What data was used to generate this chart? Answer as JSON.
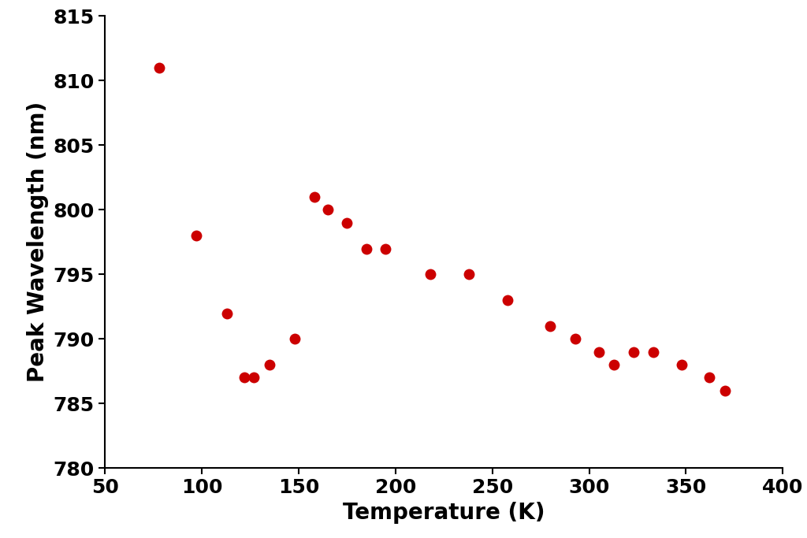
{
  "x": [
    78,
    97,
    113,
    122,
    127,
    135,
    148,
    158,
    165,
    175,
    185,
    195,
    218,
    238,
    258,
    280,
    293,
    305,
    313,
    323,
    333,
    348,
    362,
    370
  ],
  "y": [
    811,
    798,
    792,
    787,
    787,
    788,
    790,
    801,
    800,
    799,
    797,
    797,
    795,
    795,
    793,
    791,
    790,
    789,
    788,
    789,
    789,
    788,
    787,
    786
  ],
  "marker_color": "#cc0000",
  "marker_size": 100,
  "xlabel": "Temperature (K)",
  "ylabel": "Peak Wavelength (nm)",
  "xlim": [
    50,
    400
  ],
  "ylim": [
    780,
    815
  ],
  "xticks": [
    50,
    100,
    150,
    200,
    250,
    300,
    350,
    400
  ],
  "yticks": [
    780,
    785,
    790,
    795,
    800,
    805,
    810,
    815
  ],
  "background_color": "#ffffff",
  "xlabel_fontsize": 20,
  "ylabel_fontsize": 20,
  "tick_fontsize": 18,
  "tick_fontweight": "bold",
  "label_fontweight": "bold"
}
